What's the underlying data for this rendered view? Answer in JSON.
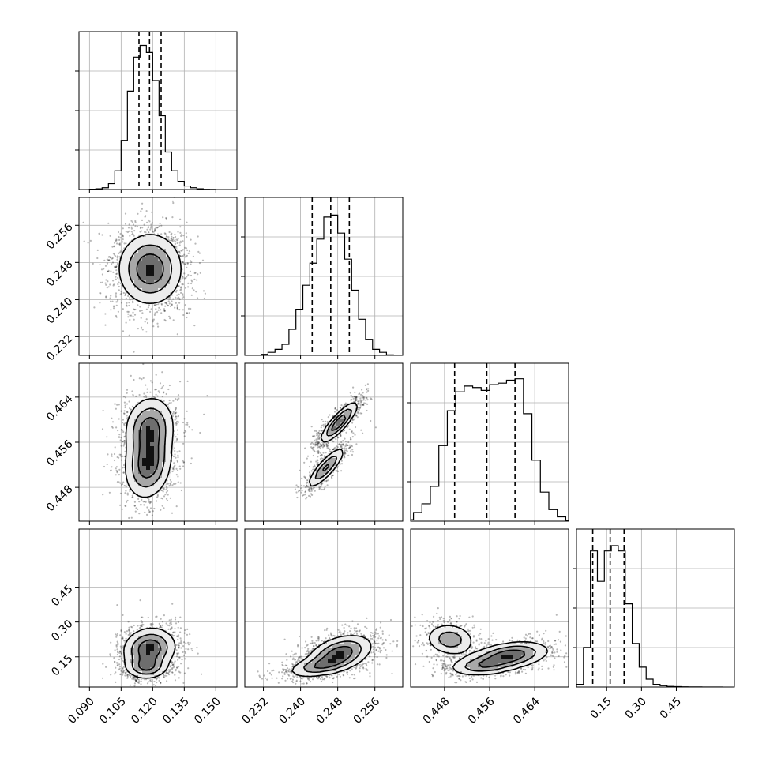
{
  "chart_data": {
    "type": "corner",
    "n_params": 4,
    "parameter_labels": [
      "",
      "",
      "",
      ""
    ],
    "ranges": [
      [
        0.085,
        0.16
      ],
      [
        0.228,
        0.262
      ],
      [
        0.442,
        0.47
      ],
      [
        0.02,
        0.7
      ]
    ],
    "ticks": [
      {
        "values": [
          0.09,
          0.105,
          0.12,
          0.135,
          0.15
        ],
        "labels": [
          "0.090",
          "0.105",
          "0.120",
          "0.135",
          "0.150"
        ]
      },
      {
        "values": [
          0.232,
          0.24,
          0.248,
          0.256
        ],
        "labels": [
          "0.232",
          "0.240",
          "0.248",
          "0.256"
        ]
      },
      {
        "values": [
          0.448,
          0.456,
          0.464
        ],
        "labels": [
          "0.448",
          "0.456",
          "0.464"
        ]
      },
      {
        "values": [
          0.15,
          0.3,
          0.45
        ],
        "labels": [
          "0.15",
          "0.30",
          "0.45"
        ]
      }
    ],
    "quantiles": [
      [
        0.1135,
        0.1185,
        0.124
      ],
      [
        0.2425,
        0.2465,
        0.2505
      ],
      [
        0.4498,
        0.4555,
        0.4605
      ],
      [
        0.09,
        0.165,
        0.225
      ]
    ],
    "histograms": [
      {
        "bin_edges": [
          0.09,
          0.093,
          0.096,
          0.099,
          0.102,
          0.105,
          0.108,
          0.111,
          0.114,
          0.117,
          0.12,
          0.123,
          0.126,
          0.129,
          0.132,
          0.135,
          0.138,
          0.141,
          0.144,
          0.147,
          0.15
        ],
        "counts": [
          0.3,
          0.6,
          1.5,
          5,
          16,
          42,
          84,
          113,
          123,
          117,
          93,
          63,
          32,
          16,
          7,
          3,
          1.5,
          0.6,
          0.2,
          0.1
        ],
        "ylim": [
          0,
          124
        ]
      },
      {
        "bin_edges": [
          0.23,
          0.2315,
          0.233,
          0.2345,
          0.236,
          0.2375,
          0.239,
          0.2405,
          0.242,
          0.2435,
          0.245,
          0.2465,
          0.248,
          0.2495,
          0.251,
          0.2525,
          0.254,
          0.2555,
          0.257,
          0.2585,
          0.26
        ],
        "counts": [
          0.2,
          1,
          3,
          6,
          11,
          26,
          46,
          70,
          92,
          116,
          138,
          140,
          122,
          96,
          65,
          36,
          16,
          6,
          3,
          0.5
        ],
        "ylim": [
          0,
          145
        ]
      },
      {
        "bin_edges": [
          0.441,
          0.4425,
          0.444,
          0.4455,
          0.447,
          0.4485,
          0.45,
          0.4515,
          0.453,
          0.4545,
          0.456,
          0.4575,
          0.459,
          0.4605,
          0.462,
          0.4635,
          0.465,
          0.4665,
          0.468,
          0.4695,
          0.471
        ],
        "counts": [
          1,
          6,
          12,
          24,
          52,
          76,
          89,
          93,
          92,
          90,
          94,
          95,
          97,
          98,
          74,
          42,
          20,
          8,
          3,
          0.5
        ],
        "ylim": [
          0,
          100
        ]
      },
      {
        "bin_edges": [
          0.02,
          0.05,
          0.08,
          0.11,
          0.14,
          0.17,
          0.2,
          0.23,
          0.26,
          0.29,
          0.32,
          0.35,
          0.38,
          0.41,
          0.44,
          0.47,
          0.5,
          0.53,
          0.56,
          0.59,
          0.62,
          0.65
        ],
        "counts": [
          2,
          30,
          103,
          80,
          103,
          107,
          103,
          63,
          33,
          15,
          6,
          2,
          1,
          0.5,
          0.3,
          0.2,
          0.1,
          0.1,
          0.05,
          0.05,
          0.05
        ],
        "ylim": [
          0,
          110
        ]
      }
    ],
    "joint_densities": [
      {
        "row": 1,
        "col": 0,
        "blobs": [
          {
            "mx": 0.1188,
            "my": 0.2466,
            "sx": 0.0075,
            "sy": 0.0038,
            "rho": 0.0,
            "w": 1.0
          }
        ]
      },
      {
        "row": 2,
        "col": 0,
        "blobs": [
          {
            "mx": 0.1178,
            "my": 0.452,
            "sx": 0.0055,
            "sy": 0.003,
            "rho": 0.15,
            "w": 0.6
          },
          {
            "mx": 0.1185,
            "my": 0.4585,
            "sx": 0.0058,
            "sy": 0.0028,
            "rho": 0.1,
            "w": 0.55
          }
        ]
      },
      {
        "row": 2,
        "col": 1,
        "blobs": [
          {
            "mx": 0.2483,
            "my": 0.4595,
            "sx": 0.002,
            "sy": 0.0018,
            "rho": 0.85,
            "w": 0.7
          },
          {
            "mx": 0.2455,
            "my": 0.4515,
            "sx": 0.002,
            "sy": 0.0018,
            "rho": 0.85,
            "w": 0.55
          }
        ]
      },
      {
        "row": 3,
        "col": 0,
        "blobs": [
          {
            "mx": 0.1185,
            "my": 0.185,
            "sx": 0.0062,
            "sy": 0.045,
            "rho": 0.1,
            "w": 0.75
          },
          {
            "mx": 0.117,
            "my": 0.105,
            "sx": 0.005,
            "sy": 0.025,
            "rho": 0.0,
            "w": 0.5
          }
        ]
      },
      {
        "row": 3,
        "col": 1,
        "blobs": [
          {
            "mx": 0.2485,
            "my": 0.165,
            "sx": 0.0035,
            "sy": 0.04,
            "rho": 0.4,
            "w": 0.75
          },
          {
            "mx": 0.244,
            "my": 0.11,
            "sx": 0.0035,
            "sy": 0.025,
            "rho": 0.5,
            "w": 0.45
          }
        ]
      },
      {
        "row": 3,
        "col": 2,
        "blobs": [
          {
            "mx": 0.449,
            "my": 0.225,
            "sx": 0.0022,
            "sy": 0.035,
            "rho": -0.1,
            "w": 0.5
          },
          {
            "mx": 0.4595,
            "my": 0.155,
            "sx": 0.0035,
            "sy": 0.03,
            "rho": 0.35,
            "w": 0.8
          },
          {
            "mx": 0.4545,
            "my": 0.11,
            "sx": 0.003,
            "sy": 0.022,
            "rho": 0.2,
            "w": 0.45
          }
        ]
      }
    ],
    "contour_levels": [
      0.15,
      0.4,
      0.7,
      0.92
    ],
    "grid": true,
    "title": "",
    "legend": "none"
  }
}
